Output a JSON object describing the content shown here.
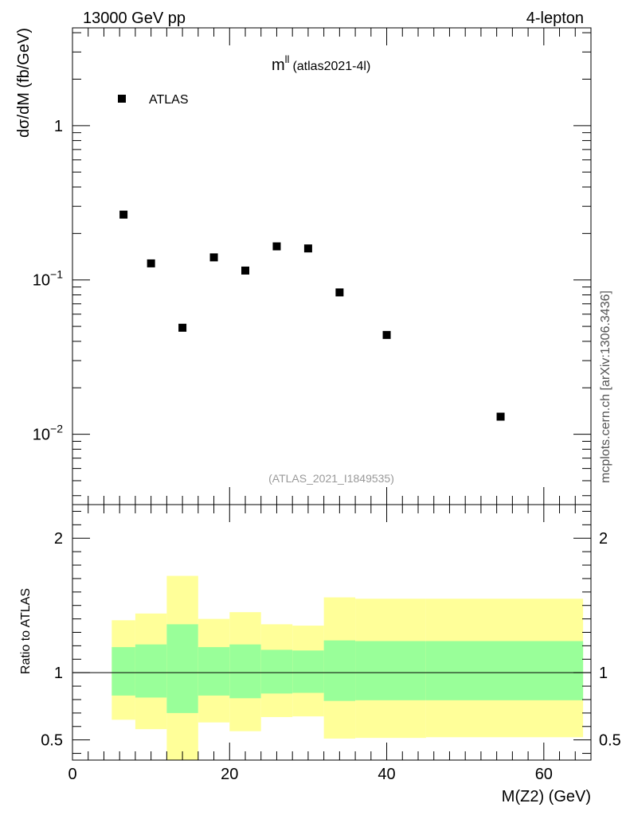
{
  "header": {
    "left": "13000 GeV pp",
    "right": "4-lepton"
  },
  "plot_title": {
    "main": "m",
    "sup": "ll",
    "sub": "(atlas2021-4l)"
  },
  "watermark": "(ATLAS_2021_I1849535)",
  "side_label": "mcplots.cern.ch [arXiv:1306.3436]",
  "chart_data": [
    {
      "type": "scatter",
      "name": "main",
      "ylabel": "dσ/dM (fb/GeV)",
      "yscale": "log",
      "xlim": [
        0,
        66
      ],
      "ylim": [
        0.0035,
        4.3
      ],
      "y_ticks": [
        {
          "value": 0.01,
          "label": "10",
          "exp": "−2"
        },
        {
          "value": 0.1,
          "label": "10",
          "exp": "−1"
        },
        {
          "value": 1,
          "label": "1",
          "exp": ""
        }
      ],
      "legend": {
        "position": "top-left",
        "entries": [
          {
            "label": "ATLAS",
            "marker": "square",
            "color": "#000000"
          }
        ]
      },
      "series": [
        {
          "name": "ATLAS",
          "x": [
            6.5,
            10,
            14,
            18,
            22,
            26,
            30,
            34,
            40,
            54.5
          ],
          "y": [
            0.265,
            0.128,
            0.049,
            0.14,
            0.115,
            0.165,
            0.16,
            0.083,
            0.044,
            0.013
          ]
        }
      ]
    },
    {
      "type": "area",
      "name": "ratio",
      "ylabel": "Ratio to ATLAS",
      "xlabel": "M(Z2) (GeV)",
      "xlim": [
        0,
        66
      ],
      "ylim": [
        0.35,
        2.25
      ],
      "x_ticks": [
        0,
        20,
        40,
        60
      ],
      "y_ticks": [
        0.5,
        1,
        2
      ],
      "reference_line": 1,
      "bins": [
        {
          "x0": 5,
          "x1": 8,
          "green": [
            0.83,
            1.19
          ],
          "yellow": [
            0.65,
            1.39
          ]
        },
        {
          "x0": 8,
          "x1": 12,
          "green": [
            0.815,
            1.21
          ],
          "yellow": [
            0.58,
            1.44
          ]
        },
        {
          "x0": 12,
          "x1": 16,
          "green": [
            0.7,
            1.36
          ],
          "yellow": [
            0.35,
            1.72
          ]
        },
        {
          "x0": 16,
          "x1": 20,
          "green": [
            0.83,
            1.19
          ],
          "yellow": [
            0.63,
            1.4
          ]
        },
        {
          "x0": 20,
          "x1": 24,
          "green": [
            0.81,
            1.21
          ],
          "yellow": [
            0.565,
            1.45
          ]
        },
        {
          "x0": 24,
          "x1": 28,
          "green": [
            0.845,
            1.17
          ],
          "yellow": [
            0.67,
            1.36
          ]
        },
        {
          "x0": 28,
          "x1": 32,
          "green": [
            0.85,
            1.165
          ],
          "yellow": [
            0.675,
            1.35
          ]
        },
        {
          "x0": 32,
          "x1": 36,
          "green": [
            0.79,
            1.24
          ],
          "yellow": [
            0.51,
            1.56
          ]
        },
        {
          "x0": 36,
          "x1": 45,
          "green": [
            0.795,
            1.235
          ],
          "yellow": [
            0.515,
            1.55
          ]
        },
        {
          "x0": 45,
          "x1": 65,
          "green": [
            0.795,
            1.235
          ],
          "yellow": [
            0.52,
            1.55
          ]
        }
      ],
      "band_colors": {
        "green": "#99ff99",
        "yellow": "#ffff99"
      }
    }
  ]
}
